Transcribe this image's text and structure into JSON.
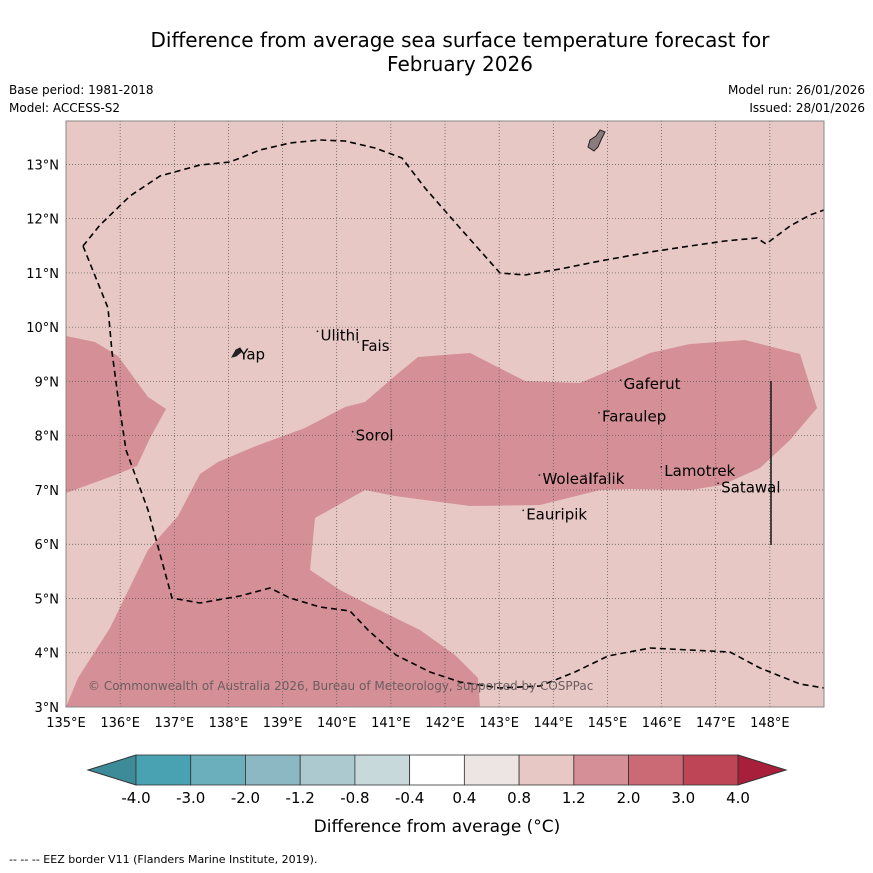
{
  "title": {
    "line1": "Difference from average sea surface temperature forecast for",
    "line2": "February 2026"
  },
  "meta": {
    "base_period": "Base period: 1981-2018",
    "model": "Model: ACCESS-S2",
    "model_run": "Model run: 26/01/2026",
    "issued": "Issued: 28/01/2026"
  },
  "map": {
    "lat_ticks": [
      "3°N",
      "4°N",
      "5°N",
      "6°N",
      "7°N",
      "8°N",
      "9°N",
      "10°N",
      "11°N",
      "12°N",
      "13°N"
    ],
    "lon_ticks": [
      "135°E",
      "136°E",
      "137°E",
      "138°E",
      "139°E",
      "140°E",
      "141°E",
      "142°E",
      "143°E",
      "144°E",
      "145°E",
      "146°E",
      "147°E",
      "148°E"
    ],
    "places": [
      {
        "name": "Yap",
        "lon": 138.2,
        "lat": 9.5
      },
      {
        "name": "Ulithi",
        "lon": 139.7,
        "lat": 9.85
      },
      {
        "name": "Fais",
        "lon": 140.45,
        "lat": 9.65
      },
      {
        "name": "Gaferut",
        "lon": 145.3,
        "lat": 8.95
      },
      {
        "name": "Faraulep",
        "lon": 144.9,
        "lat": 8.35
      },
      {
        "name": "Sorol",
        "lon": 140.35,
        "lat": 8.0
      },
      {
        "name": "Woleai",
        "lon": 143.8,
        "lat": 7.2
      },
      {
        "name": "Ifalik",
        "lon": 144.65,
        "lat": 7.2
      },
      {
        "name": "Lamotrek",
        "lon": 146.05,
        "lat": 7.35
      },
      {
        "name": "Satawal",
        "lon": 147.1,
        "lat": 7.05
      },
      {
        "name": "Eauripik",
        "lon": 143.5,
        "lat": 6.55
      }
    ],
    "copyright": "© Commonwealth of Australia 2026, Bureau of Meteorology, supported by COSPPac",
    "background_color": "#e7c8c4",
    "anomaly_region_color": "#d58f96"
  },
  "colorbar": {
    "labels": [
      "-4.0",
      "-3.0",
      "-2.0",
      "-1.2",
      "-0.8",
      "-0.4",
      "0.4",
      "0.8",
      "1.2",
      "2.0",
      "3.0",
      "4.0"
    ],
    "colors": [
      "#3d8a99",
      "#48a2b2",
      "#6baebc",
      "#8bb8c2",
      "#abc9cf",
      "#c8d9dc",
      "#ffffff",
      "#ede5e3",
      "#e7c8c4",
      "#d58f96",
      "#cb6a75",
      "#be4555",
      "#a81f3b"
    ],
    "title": "Difference from average (°C)"
  },
  "footnote": "--  --  -- EEZ border V11 (Flanders Marine Institute, 2019)."
}
